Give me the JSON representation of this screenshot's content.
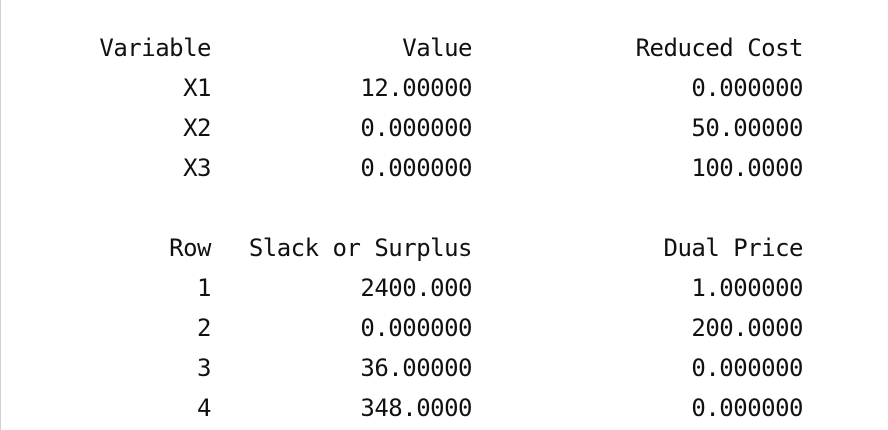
{
  "colors": {
    "background": "#ffffff",
    "text": "#111111"
  },
  "variables_table": {
    "headers": [
      "Variable",
      "Value",
      "Reduced Cost"
    ],
    "rows": [
      [
        "X1",
        "12.00000",
        "0.000000"
      ],
      [
        "X2",
        "0.000000",
        "50.00000"
      ],
      [
        "X3",
        "0.000000",
        "100.0000"
      ]
    ]
  },
  "rows_table": {
    "headers": [
      "Row",
      "Slack or Surplus",
      "Dual Price"
    ],
    "rows": [
      [
        "1",
        "2400.000",
        "1.000000"
      ],
      [
        "2",
        "0.000000",
        "200.0000"
      ],
      [
        "3",
        "36.00000",
        "0.000000"
      ],
      [
        "4",
        "348.0000",
        "0.000000"
      ]
    ]
  }
}
